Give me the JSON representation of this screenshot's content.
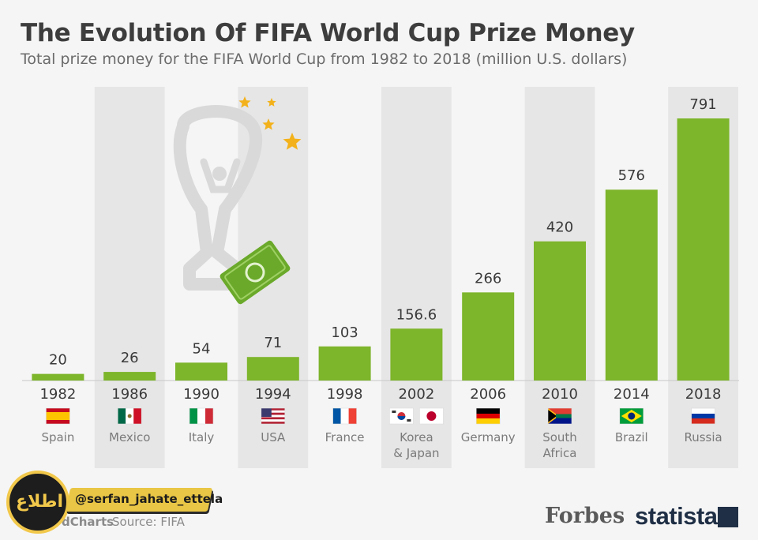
{
  "chart_data": {
    "type": "bar",
    "title": "The Evolution Of FIFA World Cup Prize Money",
    "subtitle": "Total prize money for the FIFA World Cup from 1982 to 2018 (million U.S. dollars)",
    "categories": [
      "1982",
      "1986",
      "1990",
      "1994",
      "1998",
      "2002",
      "2006",
      "2010",
      "2014",
      "2018"
    ],
    "values": [
      20,
      26,
      54,
      71,
      103,
      156.6,
      266,
      420,
      576,
      791
    ],
    "value_labels": [
      "20",
      "26",
      "54",
      "71",
      "103",
      "156.6",
      "266",
      "420",
      "576",
      "791"
    ],
    "hosts": [
      "Spain",
      "Mexico",
      "Italy",
      "USA",
      "France",
      "Korea & Japan",
      "Germany",
      "South Africa",
      "Brazil",
      "Russia"
    ],
    "host_lines": [
      [
        "Spain"
      ],
      [
        "Mexico"
      ],
      [
        "Italy"
      ],
      [
        "USA"
      ],
      [
        "France"
      ],
      [
        "Korea",
        "& Japan"
      ],
      [
        "Germany"
      ],
      [
        "South",
        "Africa"
      ],
      [
        "Brazil"
      ],
      [
        "Russia"
      ]
    ],
    "flags": [
      [
        "spain-flag-icon"
      ],
      [
        "mexico-flag-icon"
      ],
      [
        "italy-flag-icon"
      ],
      [
        "usa-flag-icon"
      ],
      [
        "france-flag-icon"
      ],
      [
        "korea-flag-icon",
        "japan-flag-icon"
      ],
      [
        "germany-flag-icon"
      ],
      [
        "south-africa-flag-icon"
      ],
      [
        "brazil-flag-icon"
      ],
      [
        "russia-flag-icon"
      ]
    ],
    "ylim": [
      0,
      791
    ],
    "grid": false,
    "legend": "none",
    "bar_color": "#7db52b",
    "shaded_columns": [
      1,
      3,
      5,
      7,
      9
    ]
  },
  "footer": {
    "source": "Source: FIFA",
    "partial": "dCharts",
    "forbes": "Forbes",
    "statista": "statista"
  },
  "watermark": {
    "handle": "@serfan_jahate_ettela",
    "logo_text": "اطلاع"
  },
  "colors": {
    "bar": "#7db52b",
    "shade": "#e6e6e6",
    "trophy": "#d9d9d9",
    "star": "#f3b21b",
    "money": "#6aa92a"
  }
}
